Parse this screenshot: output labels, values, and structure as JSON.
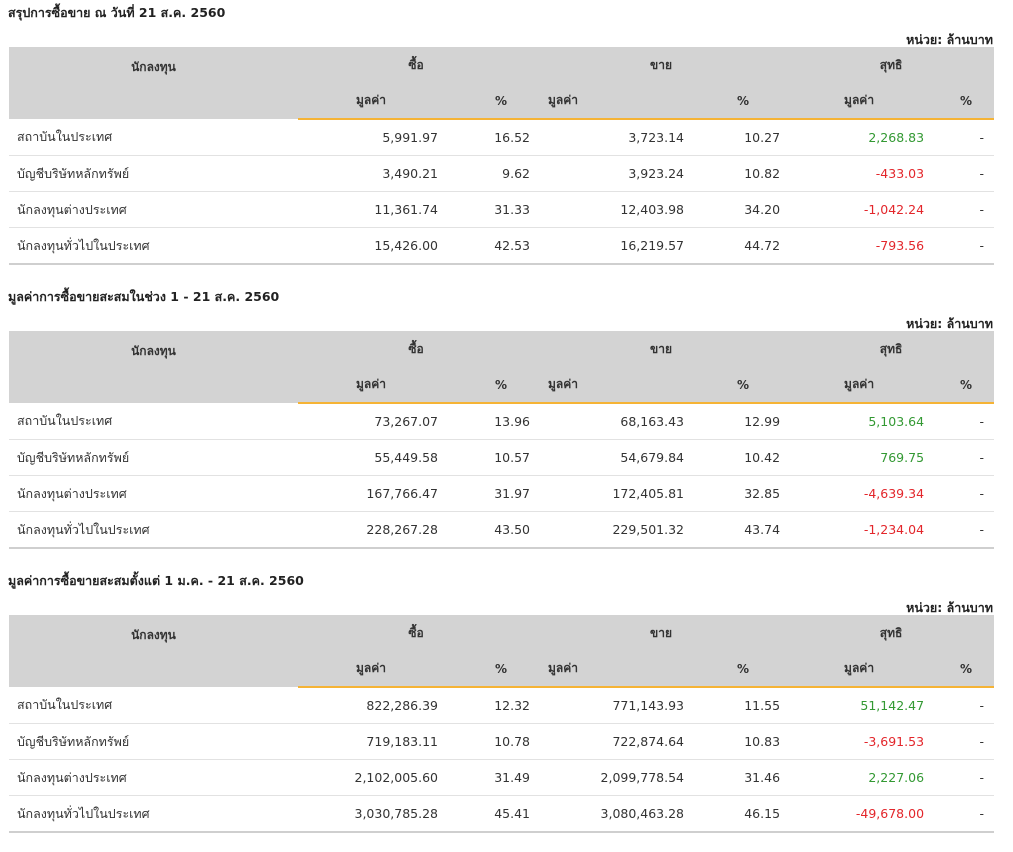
{
  "unit_label": "หน่วย: ล้านบาท",
  "headers": {
    "investor": "นักลงทุน",
    "buy": "ซื้อ",
    "sell": "ขาย",
    "net": "สุทธิ",
    "value": "มูลค่า",
    "percent": "%"
  },
  "sections": [
    {
      "title": "สรุปการซื้อขาย ณ วันที่ 21 ส.ค. 2560",
      "rows": [
        {
          "name": "สถาบันในประเทศ",
          "buy_value": "5,991.97",
          "buy_pct": "16.52",
          "sell_value": "3,723.14",
          "sell_pct": "10.27",
          "net_value": "2,268.83",
          "net_pct": "-",
          "net_sign": "pos"
        },
        {
          "name": "บัญชีบริษัทหลักทรัพย์",
          "buy_value": "3,490.21",
          "buy_pct": "9.62",
          "sell_value": "3,923.24",
          "sell_pct": "10.82",
          "net_value": "-433.03",
          "net_pct": "-",
          "net_sign": "neg"
        },
        {
          "name": "นักลงทุนต่างประเทศ",
          "buy_value": "11,361.74",
          "buy_pct": "31.33",
          "sell_value": "12,403.98",
          "sell_pct": "34.20",
          "net_value": "-1,042.24",
          "net_pct": "-",
          "net_sign": "neg"
        },
        {
          "name": "นักลงทุนทั่วไปในประเทศ",
          "buy_value": "15,426.00",
          "buy_pct": "42.53",
          "sell_value": "16,219.57",
          "sell_pct": "44.72",
          "net_value": "-793.56",
          "net_pct": "-",
          "net_sign": "neg"
        }
      ]
    },
    {
      "title": "มูลค่าการซื้อขายสะสมในช่วง 1 - 21 ส.ค. 2560",
      "rows": [
        {
          "name": "สถาบันในประเทศ",
          "buy_value": "73,267.07",
          "buy_pct": "13.96",
          "sell_value": "68,163.43",
          "sell_pct": "12.99",
          "net_value": "5,103.64",
          "net_pct": "-",
          "net_sign": "pos"
        },
        {
          "name": "บัญชีบริษัทหลักทรัพย์",
          "buy_value": "55,449.58",
          "buy_pct": "10.57",
          "sell_value": "54,679.84",
          "sell_pct": "10.42",
          "net_value": "769.75",
          "net_pct": "-",
          "net_sign": "pos"
        },
        {
          "name": "นักลงทุนต่างประเทศ",
          "buy_value": "167,766.47",
          "buy_pct": "31.97",
          "sell_value": "172,405.81",
          "sell_pct": "32.85",
          "net_value": "-4,639.34",
          "net_pct": "-",
          "net_sign": "neg"
        },
        {
          "name": "นักลงทุนทั่วไปในประเทศ",
          "buy_value": "228,267.28",
          "buy_pct": "43.50",
          "sell_value": "229,501.32",
          "sell_pct": "43.74",
          "net_value": "-1,234.04",
          "net_pct": "-",
          "net_sign": "neg"
        }
      ]
    },
    {
      "title": "มูลค่าการซื้อขายสะสมตั้งแต่ 1 ม.ค. - 21 ส.ค. 2560",
      "rows": [
        {
          "name": "สถาบันในประเทศ",
          "buy_value": "822,286.39",
          "buy_pct": "12.32",
          "sell_value": "771,143.93",
          "sell_pct": "11.55",
          "net_value": "51,142.47",
          "net_pct": "-",
          "net_sign": "pos"
        },
        {
          "name": "บัญชีบริษัทหลักทรัพย์",
          "buy_value": "719,183.11",
          "buy_pct": "10.78",
          "sell_value": "722,874.64",
          "sell_pct": "10.83",
          "net_value": "-3,691.53",
          "net_pct": "-",
          "net_sign": "neg"
        },
        {
          "name": "นักลงทุนต่างประเทศ",
          "buy_value": "2,102,005.60",
          "buy_pct": "31.49",
          "sell_value": "2,099,778.54",
          "sell_pct": "31.46",
          "net_value": "2,227.06",
          "net_pct": "-",
          "net_sign": "pos"
        },
        {
          "name": "นักลงทุนทั่วไปในประเทศ",
          "buy_value": "3,030,785.28",
          "buy_pct": "45.41",
          "sell_value": "3,080,463.28",
          "sell_pct": "46.15",
          "net_value": "-49,678.00",
          "net_pct": "-",
          "net_sign": "neg"
        }
      ]
    }
  ],
  "colors": {
    "positive": "#339933",
    "negative": "#e3262b",
    "header_bg": "#d3d3d3",
    "accent_underline": "#f5b335"
  }
}
